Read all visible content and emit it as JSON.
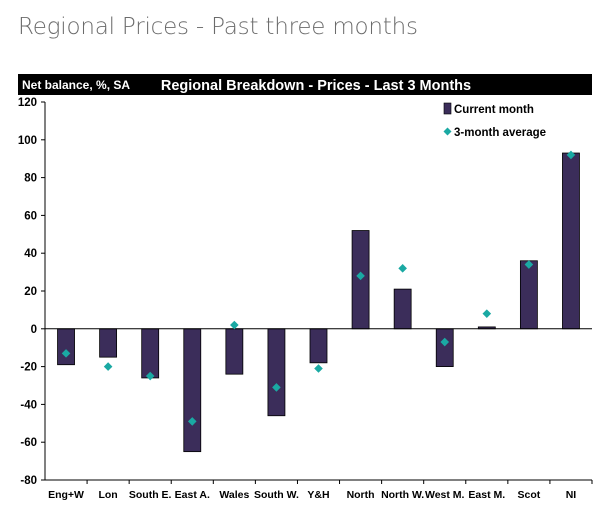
{
  "page": {
    "title": "Regional Prices - Past three months"
  },
  "colors": {
    "bar": "#3b2d5a",
    "marker": "#1aa9a3",
    "header_bg": "#000000",
    "header_text": "#ffffff",
    "axis": "#000000"
  },
  "chart_data": {
    "type": "bar",
    "title": "Regional Breakdown - Prices - Last 3 Months",
    "ylabel": "Net balance, %, SA",
    "xlabel": "",
    "ylim": [
      -80,
      120
    ],
    "yticks": [
      120,
      100,
      80,
      60,
      40,
      20,
      0,
      -20,
      -40,
      -60,
      -80
    ],
    "grid": false,
    "legend_position": "top-right",
    "categories": [
      "Eng+W",
      "Lon",
      "South E.",
      "East A.",
      "Wales",
      "South W.",
      "Y&H",
      "North",
      "North W.",
      "West M.",
      "East M.",
      "Scot",
      "NI"
    ],
    "series": [
      {
        "name": "Current month",
        "kind": "bar",
        "values": [
          -19,
          -15,
          -26,
          -65,
          -24,
          -46,
          -18,
          52,
          21,
          -20,
          1,
          36,
          93
        ]
      },
      {
        "name": "3-month average",
        "kind": "marker",
        "values": [
          -13,
          -20,
          -25,
          -49,
          2,
          -31,
          -21,
          28,
          32,
          -7,
          8,
          34,
          92
        ]
      }
    ]
  }
}
